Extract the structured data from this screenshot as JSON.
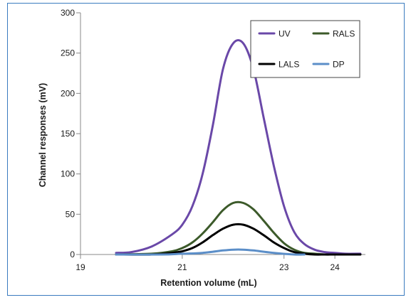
{
  "chart_data": {
    "type": "line",
    "xlabel": "Retention volume (mL)",
    "ylabel": "Channel responses (mV)",
    "xlim": [
      19,
      24.6
    ],
    "ylim": [
      0,
      300
    ],
    "xticks": [
      19,
      21,
      23,
      24
    ],
    "xtick_labels": [
      "19",
      "21",
      "23",
      "24"
    ],
    "yticks": [
      0,
      50,
      100,
      150,
      200,
      250,
      300
    ],
    "ytick_labels": [
      "0",
      "50",
      "100",
      "150",
      "200",
      "250",
      "300"
    ],
    "grid": false,
    "legend_position": "top-right",
    "series": [
      {
        "name": "UV",
        "color": "#6a48a8",
        "x": [
          19.7,
          20.0,
          20.4,
          20.8,
          21.0,
          21.2,
          21.4,
          21.6,
          21.8,
          22.0,
          22.2,
          22.4,
          22.6,
          22.8,
          23.0,
          23.2,
          23.4,
          23.6,
          23.8,
          24.0,
          24.2,
          24.5
        ],
        "y": [
          2,
          3,
          10,
          25,
          37,
          60,
          100,
          160,
          230,
          262,
          262,
          230,
          170,
          110,
          60,
          28,
          13,
          6,
          3,
          2,
          1,
          1
        ]
      },
      {
        "name": "RALS",
        "color": "#3c5a2a",
        "x": [
          19.7,
          20.4,
          20.8,
          21.0,
          21.2,
          21.4,
          21.6,
          21.8,
          22.0,
          22.2,
          22.4,
          22.6,
          22.8,
          23.0,
          23.2,
          23.4,
          23.6,
          23.8,
          24.0,
          24.5
        ],
        "y": [
          0,
          1,
          4,
          8,
          15,
          26,
          40,
          55,
          64,
          64,
          56,
          42,
          27,
          14,
          6,
          2,
          1,
          0,
          0,
          0
        ]
      },
      {
        "name": "LALS",
        "color": "#000000",
        "x": [
          19.7,
          20.4,
          20.8,
          21.0,
          21.2,
          21.4,
          21.6,
          21.8,
          22.0,
          22.2,
          22.4,
          22.6,
          22.8,
          23.0,
          23.2,
          23.4,
          23.6,
          23.8,
          24.0,
          24.5
        ],
        "y": [
          0,
          0,
          2,
          4,
          8,
          15,
          24,
          32,
          37,
          37,
          32,
          24,
          15,
          8,
          3,
          1,
          0,
          0,
          0,
          0
        ]
      },
      {
        "name": "DP",
        "color": "#5b8ec8",
        "x": [
          19.7,
          20.6,
          21.0,
          21.4,
          21.8,
          22.0,
          22.2,
          22.4,
          22.8,
          23.2,
          23.4
        ],
        "y": [
          0,
          0,
          1,
          2,
          5,
          6,
          6,
          5,
          2,
          0,
          0
        ]
      }
    ]
  }
}
